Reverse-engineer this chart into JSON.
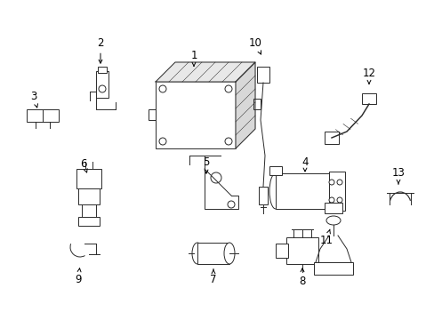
{
  "background_color": "#ffffff",
  "figsize": [
    4.89,
    3.6
  ],
  "dpi": 100,
  "line_color": "#2a2a2a",
  "lw": 0.7,
  "font_size": 8.5
}
